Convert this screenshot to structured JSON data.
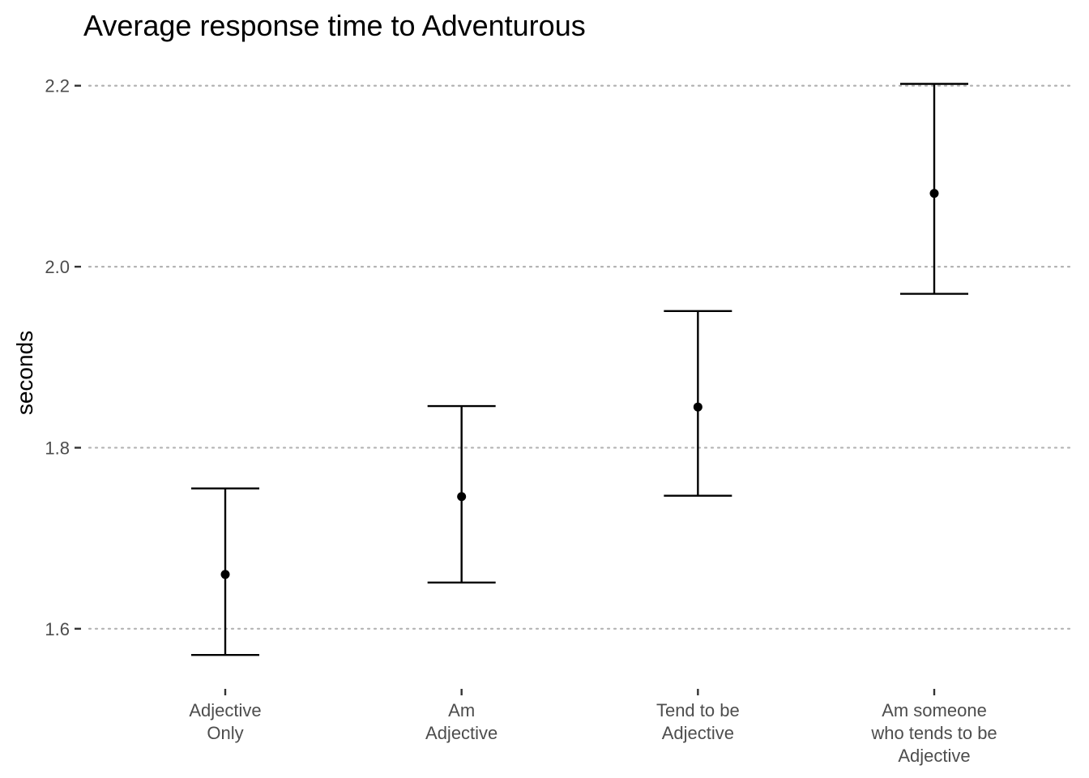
{
  "chart_data": {
    "type": "scatter",
    "title": "Average response time to Adventurous",
    "xlabel": "",
    "ylabel": "seconds",
    "ylim": [
      1.547,
      2.232
    ],
    "yticks": [
      1.6,
      1.8,
      2.0,
      2.2
    ],
    "ytick_labels": [
      "1.6",
      "1.8",
      "2.0",
      "2.2"
    ],
    "grid": "horizontal-major-dotted",
    "legend": "none",
    "categories": [
      [
        "Adjective",
        "Only"
      ],
      [
        "Am",
        "Adjective"
      ],
      [
        "Tend to be",
        "Adjective"
      ],
      [
        "Am someone",
        "who tends to be",
        "Adjective"
      ]
    ],
    "series": [
      {
        "mean": [
          1.66,
          1.746,
          1.845,
          2.081
        ],
        "lower": [
          1.571,
          1.651,
          1.747,
          1.97
        ],
        "upper": [
          1.755,
          1.846,
          1.951,
          2.202
        ]
      }
    ],
    "colors": {
      "points": "#000000",
      "errorbars": "#000000",
      "grid": "#b3b3b3",
      "tick_labels": "#4d4d4d"
    }
  }
}
